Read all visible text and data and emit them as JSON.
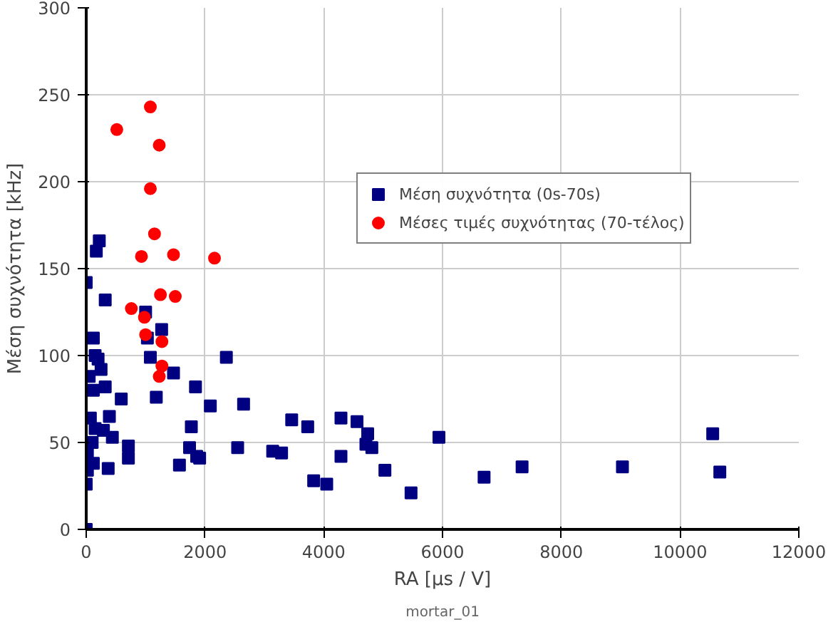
{
  "chart_data": {
    "type": "scatter",
    "xlabel": "RA [μs / V]",
    "ylabel": "Μέση συχνότητα [kHz]",
    "xlim": [
      0,
      12000
    ],
    "ylim": [
      0,
      300
    ],
    "xticks": [
      0,
      2000,
      4000,
      6000,
      8000,
      10000,
      12000
    ],
    "yticks": [
      0,
      50,
      100,
      150,
      200,
      250,
      300
    ],
    "grid": true,
    "legend": "top right",
    "annotations": [
      "mortar_01"
    ],
    "series": [
      {
        "name": "Μέση συχνότητα (0s-70s)",
        "color": "#000080",
        "marker": "square",
        "x": [
          0,
          0,
          20,
          0,
          170,
          220,
          320,
          150,
          120,
          200,
          50,
          250,
          120,
          320,
          590,
          70,
          390,
          150,
          290,
          440,
          100,
          20,
          120,
          370,
          710,
          710,
          1000,
          1030,
          1270,
          1080,
          1470,
          1180,
          1840,
          1770,
          2090,
          1740,
          1860,
          1910,
          1570,
          2360,
          2650,
          2550,
          3140,
          3290,
          3460,
          3730,
          3830,
          4050,
          4290,
          4290,
          4560,
          4740,
          4710,
          4810,
          5030,
          5470,
          5940,
          6700,
          7340,
          9030,
          10550,
          10670
        ],
        "values": [
          0,
          26,
          34,
          142,
          160,
          166,
          132,
          100,
          110,
          98,
          88,
          92,
          80,
          82,
          75,
          64,
          65,
          58,
          57,
          53,
          50,
          43,
          38,
          35,
          48,
          41,
          125,
          110,
          115,
          99,
          90,
          76,
          82,
          59,
          71,
          47,
          42,
          41,
          37,
          99,
          72,
          47,
          45,
          44,
          63,
          59,
          28,
          26,
          42,
          64,
          62,
          55,
          49,
          47,
          34,
          21,
          53,
          30,
          36,
          36,
          55,
          33
        ]
      },
      {
        "name": "Μέσες τιμές συχνότητας (70-τέλος)",
        "color": "#ff0000",
        "marker": "circle",
        "x": [
          1080,
          515,
          1230,
          1080,
          1150,
          930,
          1470,
          2160,
          1250,
          1500,
          760,
          980,
          1000,
          1275,
          1275,
          1230
        ],
        "values": [
          243,
          230,
          221,
          196,
          170,
          157,
          158,
          156,
          135,
          134,
          127,
          122,
          112,
          108,
          94,
          88
        ]
      }
    ]
  }
}
